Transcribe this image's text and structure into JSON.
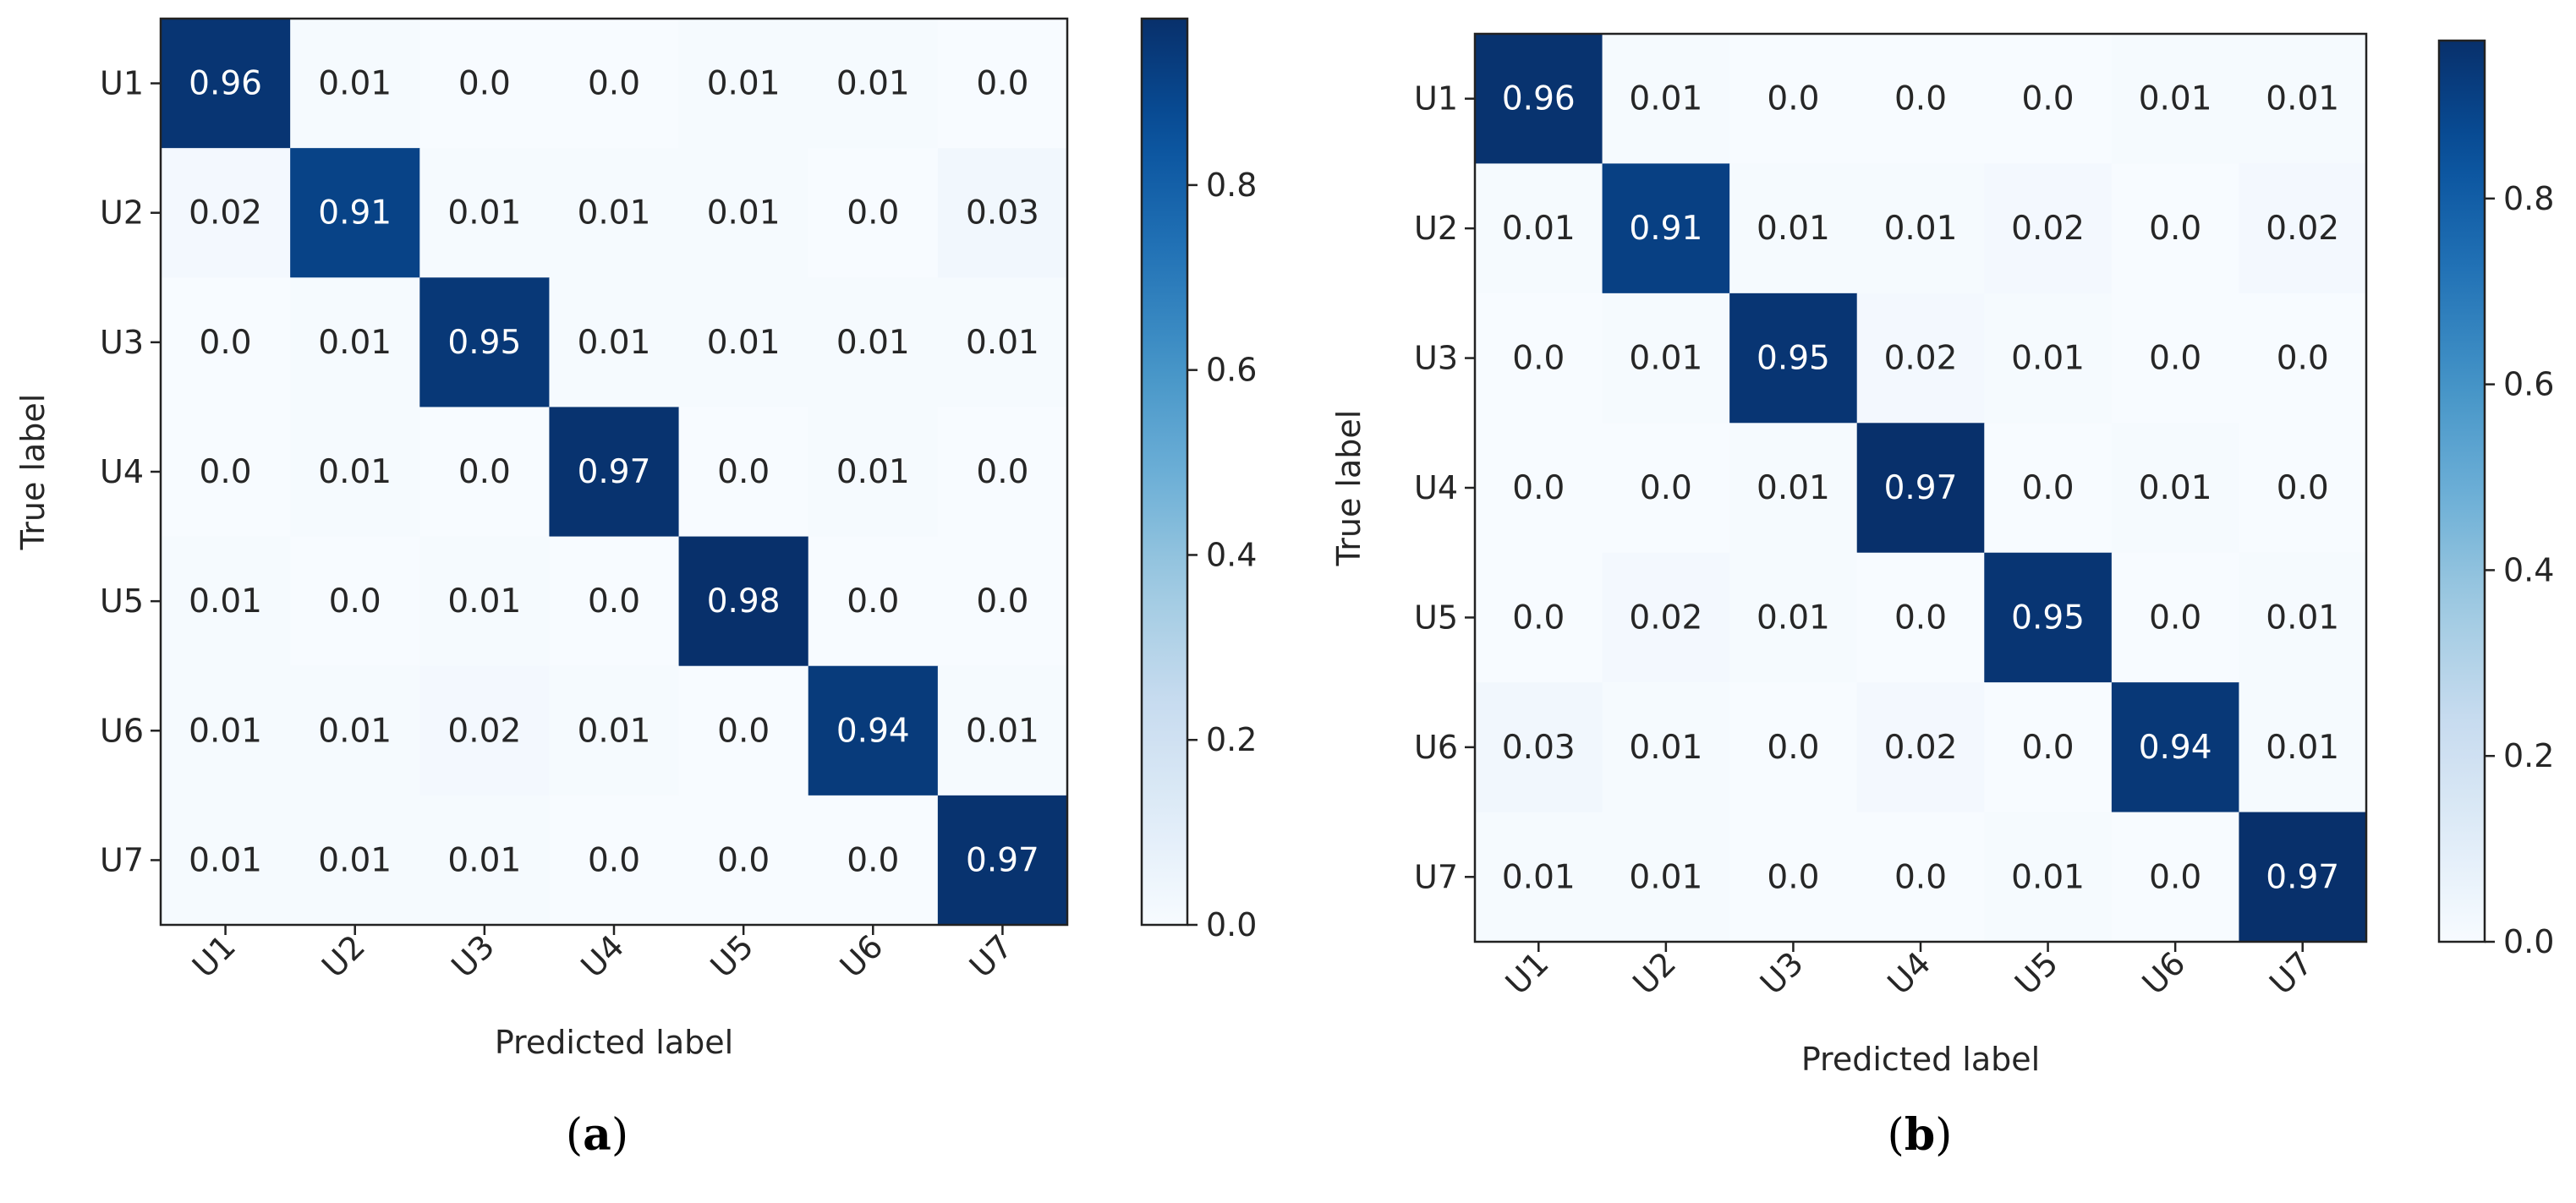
{
  "chart_data": [
    {
      "type": "heatmap",
      "panel": "(a)",
      "caption_letter": "a",
      "xlabel": "Predicted label",
      "ylabel": "True label",
      "x_categories": [
        "U1",
        "U2",
        "U3",
        "U4",
        "U5",
        "U6",
        "U7"
      ],
      "y_categories": [
        "U1",
        "U2",
        "U3",
        "U4",
        "U5",
        "U6",
        "U7"
      ],
      "matrix": [
        [
          "0.96",
          "0.01",
          "0.0",
          "0.0",
          "0.01",
          "0.01",
          "0.0"
        ],
        [
          "0.02",
          "0.91",
          "0.01",
          "0.01",
          "0.01",
          "0.0",
          "0.03"
        ],
        [
          "0.0",
          "0.01",
          "0.95",
          "0.01",
          "0.01",
          "0.01",
          "0.01"
        ],
        [
          "0.0",
          "0.01",
          "0.0",
          "0.97",
          "0.0",
          "0.01",
          "0.0"
        ],
        [
          "0.01",
          "0.0",
          "0.01",
          "0.0",
          "0.98",
          "0.0",
          "0.0"
        ],
        [
          "0.01",
          "0.01",
          "0.02",
          "0.01",
          "0.0",
          "0.94",
          "0.01"
        ],
        [
          "0.01",
          "0.01",
          "0.01",
          "0.0",
          "0.0",
          "0.0",
          "0.97"
        ]
      ],
      "colorbar": {
        "min": 0.0,
        "max": 0.98,
        "ticks": [
          "0.0",
          "0.2",
          "0.4",
          "0.6",
          "0.8"
        ],
        "colormap": "Blues"
      }
    },
    {
      "type": "heatmap",
      "panel": "(b)",
      "caption_letter": "b",
      "xlabel": "Predicted label",
      "ylabel": "True label",
      "x_categories": [
        "U1",
        "U2",
        "U3",
        "U4",
        "U5",
        "U6",
        "U7"
      ],
      "y_categories": [
        "U1",
        "U2",
        "U3",
        "U4",
        "U5",
        "U6",
        "U7"
      ],
      "matrix": [
        [
          "0.96",
          "0.01",
          "0.0",
          "0.0",
          "0.0",
          "0.01",
          "0.01"
        ],
        [
          "0.01",
          "0.91",
          "0.01",
          "0.01",
          "0.02",
          "0.0",
          "0.02"
        ],
        [
          "0.0",
          "0.01",
          "0.95",
          "0.02",
          "0.01",
          "0.0",
          "0.0"
        ],
        [
          "0.0",
          "0.0",
          "0.01",
          "0.97",
          "0.0",
          "0.01",
          "0.0"
        ],
        [
          "0.0",
          "0.02",
          "0.01",
          "0.0",
          "0.95",
          "0.0",
          "0.01"
        ],
        [
          "0.03",
          "0.01",
          "0.0",
          "0.02",
          "0.0",
          "0.94",
          "0.01"
        ],
        [
          "0.01",
          "0.01",
          "0.0",
          "0.0",
          "0.01",
          "0.0",
          "0.97"
        ]
      ],
      "colorbar": {
        "min": 0.0,
        "max": 0.97,
        "ticks": [
          "0.0",
          "0.2",
          "0.4",
          "0.6",
          "0.8"
        ],
        "colormap": "Blues"
      }
    }
  ]
}
